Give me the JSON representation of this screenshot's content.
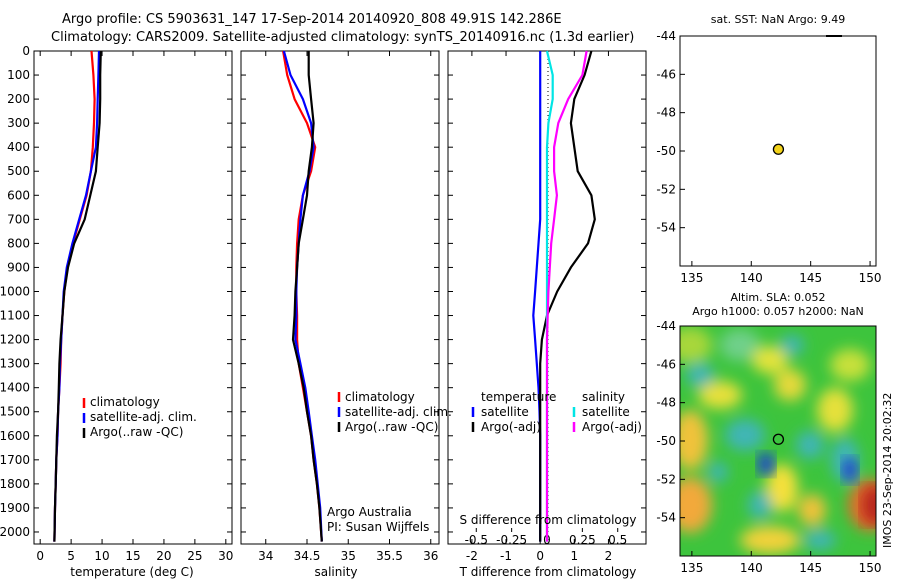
{
  "header": {
    "line1": "Argo profile: CS 5903631_147 17-Sep-2014 20140920_808 49.91S 142.286E",
    "line2": "Climatology: CARS2009. Satellite-adjusted climatology: synTS_20140916.nc (1.3d earlier)"
  },
  "footer": {
    "credit_line1": "Argo Australia",
    "credit_line2": "PI: Susan Wijffels",
    "imos_stamp": "IMOS 23-Sep-2014 20:02:32"
  },
  "colors": {
    "climatology": "#ff0000",
    "satellite_clim": "#0000ff",
    "argo": "#000000",
    "salinity_sat": "#00e5e5",
    "salinity_argo": "#ff00ff",
    "float_marker": "#f2d21a"
  },
  "chart_data": [
    {
      "type": "line",
      "name": "temperature",
      "xlabel": "temperature (deg C)",
      "ylabel": "",
      "xlim": [
        -1,
        31
      ],
      "ylim": [
        2050,
        0
      ],
      "xticks": [
        0,
        5,
        10,
        15,
        20,
        25,
        30
      ],
      "yticks": [
        0,
        100,
        200,
        300,
        400,
        500,
        600,
        700,
        800,
        900,
        1000,
        1100,
        1200,
        1300,
        1400,
        1500,
        1600,
        1700,
        1800,
        1900,
        2000
      ],
      "legend": [
        "climatology",
        "satellite-adj. clim.",
        "Argo(..raw -QC)"
      ],
      "legend_position": "lower-center",
      "series": [
        {
          "name": "climatology",
          "color": "#ff0000",
          "x": [
            8.3,
            8.6,
            8.8,
            8.7,
            8.5,
            8.2,
            7.5,
            6.4,
            5.3,
            4.4,
            3.9,
            3.6,
            3.4,
            3.3,
            3.1,
            2.9,
            2.8,
            2.6,
            2.5,
            2.4,
            2.3
          ],
          "y": [
            0,
            100,
            200,
            300,
            400,
            500,
            600,
            700,
            800,
            900,
            1000,
            1100,
            1200,
            1300,
            1400,
            1500,
            1600,
            1700,
            1800,
            1900,
            2040
          ]
        },
        {
          "name": "satellite-adj. clim.",
          "color": "#0000ff",
          "x": [
            9.5,
            9.4,
            9.3,
            9.2,
            9.0,
            8.2,
            7.4,
            6.3,
            5.2,
            4.3,
            3.8,
            3.6,
            3.4,
            3.2,
            3.1,
            2.9,
            2.8,
            2.6,
            2.5,
            2.4,
            2.3
          ],
          "y": [
            0,
            100,
            200,
            300,
            400,
            500,
            600,
            700,
            800,
            900,
            1000,
            1100,
            1200,
            1300,
            1400,
            1500,
            1600,
            1700,
            1800,
            1900,
            2040
          ]
        },
        {
          "name": "Argo(..raw -QC)",
          "color": "#000000",
          "x": [
            9.8,
            9.7,
            9.7,
            9.6,
            9.3,
            9.0,
            8.1,
            7.2,
            5.5,
            4.5,
            3.9,
            3.6,
            3.3,
            3.1,
            3.0,
            2.9,
            2.7,
            2.6,
            2.5,
            2.4,
            2.3
          ],
          "y": [
            0,
            100,
            200,
            300,
            400,
            500,
            600,
            700,
            800,
            900,
            1000,
            1100,
            1200,
            1300,
            1400,
            1500,
            1600,
            1700,
            1800,
            1900,
            2040
          ]
        }
      ]
    },
    {
      "type": "line",
      "name": "salinity",
      "xlabel": "salinity",
      "xlim": [
        33.7,
        36.1
      ],
      "ylim": [
        2050,
        0
      ],
      "xticks": [
        34,
        34.5,
        35,
        35.5,
        36
      ],
      "legend": [
        "climatology",
        "satellite-adj. clim.",
        "Argo(..raw -QC)"
      ],
      "legend_position": "lower-right",
      "series": [
        {
          "name": "climatology",
          "color": "#ff0000",
          "x": [
            34.21,
            34.26,
            34.35,
            34.5,
            34.6,
            34.55,
            34.45,
            34.4,
            34.38,
            34.37,
            34.37,
            34.38,
            34.38,
            34.4,
            34.45,
            34.5,
            34.55,
            34.58,
            34.62,
            34.65,
            34.68
          ],
          "y": [
            0,
            100,
            200,
            300,
            400,
            500,
            600,
            700,
            800,
            900,
            1000,
            1100,
            1200,
            1300,
            1400,
            1500,
            1600,
            1700,
            1800,
            1900,
            2040
          ]
        },
        {
          "name": "satellite-adj. clim.",
          "color": "#0000ff",
          "x": [
            34.22,
            34.3,
            34.45,
            34.55,
            34.58,
            34.53,
            34.45,
            34.42,
            34.4,
            34.38,
            34.37,
            34.37,
            34.36,
            34.42,
            34.48,
            34.52,
            34.56,
            34.6,
            34.63,
            34.66,
            34.68
          ],
          "y": [
            0,
            100,
            200,
            300,
            400,
            500,
            600,
            700,
            800,
            900,
            1000,
            1100,
            1200,
            1300,
            1400,
            1500,
            1600,
            1700,
            1800,
            1900,
            2040
          ]
        },
        {
          "name": "Argo(..raw -QC)",
          "color": "#000000",
          "x": [
            34.52,
            34.52,
            34.55,
            34.58,
            34.56,
            34.52,
            34.5,
            34.45,
            34.4,
            34.38,
            34.36,
            34.35,
            34.33,
            34.4,
            34.46,
            34.5,
            34.55,
            34.58,
            34.62,
            34.65,
            34.68
          ],
          "y": [
            0,
            100,
            200,
            300,
            400,
            500,
            600,
            700,
            800,
            900,
            1000,
            1100,
            1200,
            1300,
            1400,
            1500,
            1600,
            1700,
            1800,
            1900,
            2040
          ]
        }
      ]
    },
    {
      "type": "line",
      "name": "differences",
      "xlabel": "T difference from climatology",
      "top_axis_label": "S difference from climatology",
      "xlim": [
        -2.7,
        3.1
      ],
      "ylim": [
        2050,
        0
      ],
      "xticks": [
        -2,
        -1,
        0,
        1,
        2
      ],
      "top_ticks": [
        -0.5,
        -0.25,
        0,
        0.25,
        0.5
      ],
      "legend_temperature": [
        "temperature",
        "satellite",
        "Argo(-adj)"
      ],
      "legend_salinity": [
        "salinity",
        "satellite",
        "Argo(-adj)"
      ],
      "legend_position": "lower-center",
      "series": [
        {
          "name": "T satellite",
          "color": "#0000ff",
          "x": [
            0,
            0,
            0,
            0,
            0,
            0,
            0,
            0,
            -0.05,
            -0.1,
            -0.15,
            -0.2,
            -0.15,
            -0.1,
            -0.05,
            -0.02,
            0,
            0,
            0,
            0,
            0
          ],
          "y": [
            0,
            100,
            200,
            300,
            400,
            500,
            600,
            700,
            800,
            900,
            1000,
            1100,
            1200,
            1300,
            1400,
            1500,
            1600,
            1700,
            1800,
            1900,
            2040
          ]
        },
        {
          "name": "T Argo(-adj)",
          "color": "#000000",
          "x": [
            1.5,
            1.3,
            1.0,
            0.9,
            1.0,
            1.1,
            1.5,
            1.6,
            1.4,
            0.9,
            0.5,
            0.2,
            0.05,
            0,
            0,
            0,
            0,
            0,
            0,
            0,
            0
          ],
          "y": [
            0,
            100,
            200,
            300,
            400,
            500,
            600,
            700,
            800,
            900,
            1000,
            1100,
            1200,
            1300,
            1400,
            1500,
            1600,
            1700,
            1800,
            1900,
            2040
          ]
        },
        {
          "name": "S satellite",
          "color": "#00e5e5",
          "x": [
            0,
            0.04,
            0.04,
            0.01,
            0,
            0,
            0,
            0,
            0,
            0,
            0,
            0,
            0,
            0,
            0,
            0,
            0,
            0,
            0,
            0,
            0
          ],
          "y": [
            0,
            100,
            200,
            300,
            400,
            500,
            600,
            700,
            800,
            900,
            1000,
            1100,
            1200,
            1300,
            1400,
            1500,
            1600,
            1700,
            1800,
            1900,
            2040
          ]
        },
        {
          "name": "S Argo(-adj)",
          "color": "#ff00ff",
          "x": [
            0.28,
            0.25,
            0.15,
            0.08,
            0.05,
            0.05,
            0.07,
            0.05,
            0.03,
            0.02,
            0.01,
            0.005,
            0,
            0,
            0,
            0,
            0,
            0,
            0,
            0,
            0
          ],
          "y": [
            0,
            100,
            200,
            300,
            400,
            500,
            600,
            700,
            800,
            900,
            1000,
            1100,
            1200,
            1300,
            1400,
            1500,
            1600,
            1700,
            1800,
            1900,
            2040
          ]
        }
      ]
    },
    {
      "type": "scatter",
      "name": "sst_map",
      "title": "sat. SST: NaN Argo: 9.49",
      "xlim": [
        134,
        150.5
      ],
      "ylim": [
        -56,
        -44
      ],
      "xticks": [
        135,
        140,
        145,
        150
      ],
      "yticks": [
        -44,
        -46,
        -48,
        -50,
        -52,
        -54
      ],
      "points": [
        {
          "x": 142.286,
          "y": -49.91
        }
      ]
    },
    {
      "type": "heatmap",
      "name": "sla_map",
      "title_line1": "Altim. SLA: 0.052",
      "title_line2": "Argo h1000: 0.057 h2000: NaN",
      "xlim": [
        134,
        150.5
      ],
      "ylim": [
        -56,
        -44
      ],
      "xticks": [
        135,
        140,
        145,
        150
      ],
      "yticks": [
        -44,
        -46,
        -48,
        -50,
        -52,
        -54
      ],
      "points": [
        {
          "x": 142.286,
          "y": -49.91
        }
      ]
    }
  ]
}
